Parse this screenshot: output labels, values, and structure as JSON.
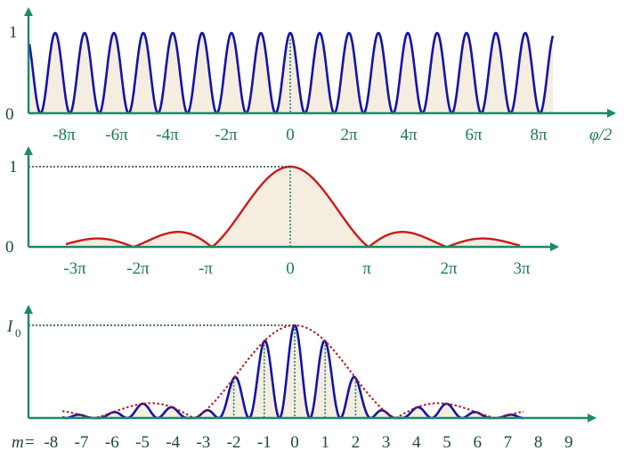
{
  "panel1": {
    "y_ticks": [
      "1",
      "0"
    ],
    "x_ticks": [
      "-8π",
      "-6π",
      "-4π",
      "-2π",
      "0",
      "2π",
      "4π",
      "6π",
      "8π"
    ],
    "x_axis_label": "φ/2"
  },
  "panel2": {
    "y_ticks": [
      "1",
      "0"
    ],
    "x_ticks": [
      "-3π",
      "-2π",
      "-π",
      "0",
      "π",
      "2π",
      "3π"
    ]
  },
  "panel3": {
    "y_label_main": "I",
    "y_label_sub": "0",
    "m_prefix": "m=",
    "m_ticks": [
      "-8",
      "-7",
      "-6",
      "-5",
      "-4",
      "-3",
      "-2",
      "-1",
      "0",
      "1",
      "2",
      "3",
      "4",
      "5",
      "6",
      "7",
      "8",
      "9"
    ]
  },
  "colors": {
    "axis": "#1a8a6a",
    "panel1_curve": "#1414a8",
    "panel2_curve": "#cc1a1a",
    "panel3_curve": "#1414a8",
    "envelope": "#b01a1a",
    "fill": "#f5ede0"
  }
}
